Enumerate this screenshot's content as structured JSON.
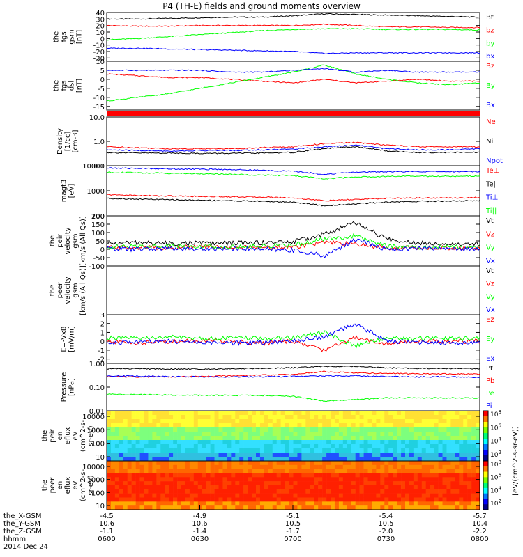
{
  "title": "P4 (TH-E) fields and ground moments overview",
  "chart_data": [
    {
      "type": "line",
      "ylabel": [
        "the",
        "fgs",
        "gsm",
        "[nT]"
      ],
      "yticks": [
        40,
        30,
        20,
        10,
        0,
        -10,
        -20,
        -30
      ],
      "ylim": [
        -35,
        40
      ],
      "series": [
        {
          "name": "Bt",
          "color": "#000000",
          "values": [
            30,
            30,
            31,
            32,
            33,
            33,
            35,
            38,
            37,
            36,
            35,
            34,
            33
          ]
        },
        {
          "name": "bz",
          "color": "#ff0000",
          "values": [
            20,
            19,
            19,
            20,
            20,
            20,
            20,
            22,
            20,
            18,
            18,
            17,
            17
          ]
        },
        {
          "name": "by",
          "color": "#00ff00",
          "values": [
            -2,
            0,
            3,
            6,
            9,
            12,
            14,
            15,
            15,
            14,
            14,
            14,
            13
          ]
        },
        {
          "name": "bx",
          "color": "#0000ff",
          "values": [
            -15,
            -15,
            -16,
            -17,
            -18,
            -19,
            -20,
            -23,
            -22,
            -22,
            -22,
            -22,
            -22
          ]
        }
      ]
    },
    {
      "type": "line",
      "ylabel": [
        "the",
        "fgs",
        "dsl",
        "[nT]"
      ],
      "yticks": [
        10,
        5,
        0,
        -5,
        -10,
        -15
      ],
      "ylim": [
        -17,
        10
      ],
      "series": [
        {
          "name": "Bz",
          "color": "#ff0000",
          "values": [
            3,
            2,
            1,
            1,
            0,
            -1,
            -2,
            0,
            -2,
            -1,
            0,
            -1,
            -1
          ]
        },
        {
          "name": "By",
          "color": "#00ff00",
          "values": [
            -12,
            -10,
            -8,
            -5,
            -2,
            1,
            4,
            8,
            3,
            0,
            -2,
            -3,
            -2
          ]
        },
        {
          "name": "Bx",
          "color": "#0000ff",
          "values": [
            5,
            5,
            5,
            5,
            4,
            4,
            5,
            6,
            4,
            5,
            4,
            4,
            4
          ]
        }
      ]
    },
    {
      "type": "line",
      "ylabel": [
        "Density",
        "[1/cc]",
        "[cm-3]"
      ],
      "yscale": "log",
      "yticks": [
        "10.0",
        "1.0",
        "0.1"
      ],
      "ylim": [
        0.1,
        10
      ],
      "series": [
        {
          "name": "Ne",
          "color": "#ff0000",
          "values": [
            0.6,
            0.55,
            0.5,
            0.5,
            0.5,
            0.55,
            0.6,
            0.8,
            0.9,
            0.7,
            0.6,
            0.6,
            0.6
          ]
        },
        {
          "name": "Ni",
          "color": "#000000",
          "values": [
            0.35,
            0.33,
            0.33,
            0.32,
            0.32,
            0.33,
            0.35,
            0.5,
            0.6,
            0.4,
            0.35,
            0.35,
            0.35
          ]
        },
        {
          "name": "Npot",
          "color": "#0000ff",
          "values": [
            0.45,
            0.42,
            0.4,
            0.42,
            0.42,
            0.45,
            0.48,
            0.6,
            0.7,
            0.5,
            0.45,
            0.45,
            0.5
          ]
        }
      ]
    },
    {
      "type": "line",
      "ylabel": [
        "magt3",
        "[eV]"
      ],
      "yscale": "log",
      "yticks": [
        "10000",
        "1000",
        "100"
      ],
      "ylim": [
        100,
        10000
      ],
      "series": [
        {
          "name": "Te⊥",
          "color": "#ff0000",
          "values": [
            700,
            650,
            620,
            600,
            580,
            560,
            520,
            400,
            450,
            500,
            520,
            520,
            540
          ]
        },
        {
          "name": "Te||",
          "color": "#000000",
          "values": [
            500,
            470,
            440,
            420,
            400,
            380,
            350,
            250,
            300,
            350,
            380,
            390,
            400
          ]
        },
        {
          "name": "Ti⊥",
          "color": "#0000ff",
          "values": [
            8000,
            7800,
            7500,
            7300,
            7000,
            6500,
            6000,
            4500,
            5500,
            5800,
            5800,
            5800,
            5900
          ]
        },
        {
          "name": "Ti||",
          "color": "#00ff00",
          "values": [
            5500,
            5200,
            5000,
            4800,
            4500,
            4200,
            4000,
            3000,
            3500,
            3800,
            3800,
            3800,
            3900
          ]
        }
      ]
    },
    {
      "type": "line",
      "ylabel": [
        "the",
        "peir",
        "velocity",
        "gsm",
        "[km/s (All Qs)]"
      ],
      "yticks": [
        200,
        150,
        100,
        50,
        0,
        -50,
        -100
      ],
      "ylim": [
        -100,
        200
      ],
      "series": [
        {
          "name": "Vt",
          "color": "#000000",
          "values": [
            35,
            40,
            35,
            38,
            36,
            40,
            45,
            90,
            160,
            60,
            40,
            35,
            30
          ]
        },
        {
          "name": "Vz",
          "color": "#ff0000",
          "values": [
            10,
            12,
            10,
            15,
            12,
            10,
            15,
            40,
            30,
            10,
            10,
            8,
            10
          ]
        },
        {
          "name": "Vy",
          "color": "#00ff00",
          "values": [
            15,
            18,
            20,
            18,
            15,
            20,
            25,
            60,
            80,
            20,
            10,
            15,
            15
          ]
        },
        {
          "name": "Vx",
          "color": "#0000ff",
          "values": [
            5,
            0,
            5,
            0,
            5,
            0,
            -5,
            -40,
            60,
            0,
            5,
            5,
            0
          ]
        }
      ]
    },
    {
      "type": "line",
      "ylabel": [
        "the",
        "peer",
        "velocity",
        "gsm",
        "[km/s (All Qs)]"
      ],
      "yticks": [],
      "series": [
        {
          "name": "Vt",
          "color": "#000000",
          "values": []
        },
        {
          "name": "Vz",
          "color": "#ff0000",
          "values": []
        },
        {
          "name": "Vy",
          "color": "#00ff00",
          "values": []
        },
        {
          "name": "Vx",
          "color": "#0000ff",
          "values": []
        }
      ]
    },
    {
      "type": "line",
      "ylabel": [
        "E=-VxB",
        "[mV/m]"
      ],
      "yticks": [
        3,
        2,
        1,
        0,
        -1,
        -2
      ],
      "ylim": [
        -2.5,
        3
      ],
      "series": [
        {
          "name": "Ez",
          "color": "#ff0000",
          "values": [
            0,
            -0.2,
            0,
            0.1,
            0,
            -0.2,
            0,
            -1.0,
            0.5,
            -0.3,
            0,
            0,
            0
          ]
        },
        {
          "name": "Ey",
          "color": "#00ff00",
          "values": [
            0.4,
            0.3,
            0.5,
            0.3,
            0.4,
            0.3,
            0.4,
            1.0,
            -0.5,
            0.4,
            0.3,
            0.3,
            0.3
          ]
        },
        {
          "name": "Ex",
          "color": "#0000ff",
          "values": [
            -0.2,
            -0.1,
            0,
            -0.2,
            -0.2,
            -0.1,
            0,
            0.5,
            2.0,
            0,
            -0.1,
            -0.2,
            -0.2
          ]
        }
      ]
    },
    {
      "type": "line",
      "ylabel": [
        "Pressure",
        "[nPa]"
      ],
      "yscale": "log",
      "yticks": [
        "1.00",
        "0.10",
        "0.01"
      ],
      "ylim": [
        0.01,
        1
      ],
      "series": [
        {
          "name": "Pt",
          "color": "#000000",
          "values": [
            0.6,
            0.6,
            0.58,
            0.58,
            0.6,
            0.62,
            0.65,
            0.75,
            0.75,
            0.65,
            0.62,
            0.62,
            0.6
          ]
        },
        {
          "name": "Pb",
          "color": "#ff0000",
          "values": [
            0.28,
            0.27,
            0.27,
            0.28,
            0.3,
            0.32,
            0.34,
            0.45,
            0.4,
            0.38,
            0.36,
            0.36,
            0.35
          ]
        },
        {
          "name": "Pe",
          "color": "#00ff00",
          "values": [
            0.05,
            0.048,
            0.046,
            0.045,
            0.045,
            0.045,
            0.04,
            0.025,
            0.03,
            0.035,
            0.035,
            0.035,
            0.035
          ]
        },
        {
          "name": "Pi",
          "color": "#0000ff",
          "values": [
            0.3,
            0.29,
            0.28,
            0.27,
            0.27,
            0.27,
            0.28,
            0.3,
            0.3,
            0.28,
            0.27,
            0.27,
            0.26
          ]
        }
      ]
    },
    {
      "type": "heatmap",
      "ylabel": [
        "the",
        "peir",
        "en",
        "eflux",
        "eV",
        "(cm^2-s-",
        "sr-eV)"
      ],
      "yscale": "log",
      "yticks": [
        "10000",
        "1000",
        "100",
        "10"
      ],
      "colorbar_ticks": [
        "10^8",
        "10^6",
        "10^4",
        "10^2"
      ],
      "colorbar_label": "[eV/(cm^2-s-sr-eV)]"
    },
    {
      "type": "heatmap",
      "ylabel": [
        "the",
        "peer",
        "en",
        "eflux",
        "eV",
        "(cm^2-s-",
        "sr-eV)"
      ],
      "yscale": "log",
      "yticks": [
        "10000",
        "1000",
        "100",
        "10"
      ],
      "colorbar_ticks": [
        "10^8",
        "10^6",
        "10^4",
        "10^2"
      ],
      "colorbar_label": "[eV/(cm^2-s-sr-eV)]"
    }
  ],
  "xaxis": {
    "rows": [
      {
        "label": "the_X-GSM",
        "values": [
          "-4.5",
          "-4.9",
          "-5.1",
          "-5.4",
          "-5.7"
        ]
      },
      {
        "label": "the_Y-GSM",
        "values": [
          "10.6",
          "10.6",
          "10.5",
          "10.5",
          "10.4"
        ]
      },
      {
        "label": "the_Z-GSM",
        "values": [
          "-1.1",
          "-1.4",
          "-1.7",
          "-2.0",
          "-2.2"
        ]
      },
      {
        "label": "hhmm",
        "values": [
          "0600",
          "0630",
          "0700",
          "0730",
          "0800"
        ]
      }
    ],
    "date": "2014 Dec 24"
  }
}
